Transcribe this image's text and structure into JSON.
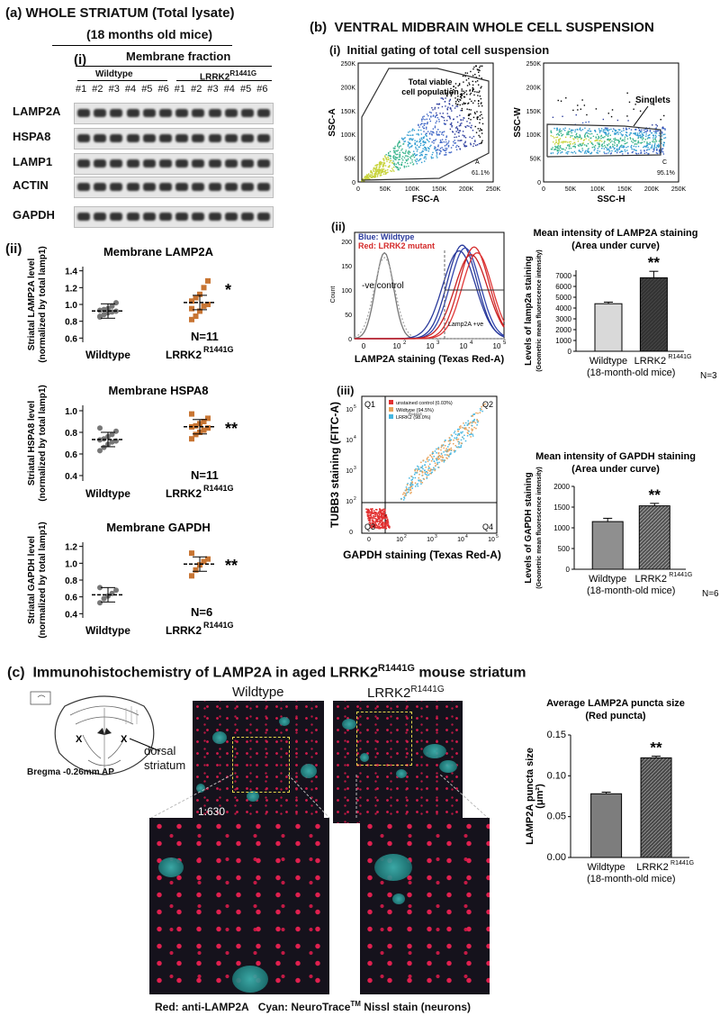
{
  "panel_a": {
    "label": "(a)",
    "title": "WHOLE STRIATUM (Total lysate)",
    "subtitle": "(18 months old mice)",
    "sub_i": "(i)",
    "fraction": "Membrane fraction",
    "wildtype": "Wildtype",
    "lrrk2": "LRRK2",
    "mutation": "R1441G",
    "lanes": [
      "#1",
      "#2",
      "#3",
      "#4",
      "#5",
      "#6",
      "#1",
      "#2",
      "#3",
      "#4",
      "#5",
      "#6"
    ],
    "blots": [
      "LAMP2A",
      "HSPA8",
      "LAMP1",
      "ACTIN",
      "GAPDH"
    ],
    "sub_ii": "(ii)"
  },
  "dot_plots": [
    {
      "title": "Membrane LAMP2A",
      "ylabel1": "Striatal LAMP2A level",
      "ylabel2": "(normalized by total lamp1)",
      "yticks": [
        "1.4",
        "1.2",
        "1.0",
        "0.8",
        "0.6"
      ],
      "sig": "*",
      "n": "N=11",
      "xlabels": [
        "Wildtype",
        "LRRK2"
      ],
      "mutation": "R1441G",
      "wt_values": [
        0.86,
        0.88,
        0.9,
        0.91,
        0.92,
        0.93,
        0.94,
        0.95,
        0.98,
        1.02,
        0.85
      ],
      "mut_values": [
        0.82,
        0.86,
        0.92,
        0.98,
        1.0,
        1.04,
        1.08,
        1.12,
        1.2,
        1.28,
        0.95
      ]
    },
    {
      "title": "Membrane HSPA8",
      "ylabel1": "Striatal HSPA8 level",
      "ylabel2": "(normalized by total lamp1)",
      "yticks": [
        "1.0",
        "0.8",
        "0.6",
        "0.4"
      ],
      "sig": "**",
      "n": "N=11",
      "xlabels": [
        "Wildtype",
        "LRRK2"
      ],
      "mutation": "R1441G",
      "wt_values": [
        0.63,
        0.66,
        0.69,
        0.71,
        0.72,
        0.73,
        0.74,
        0.76,
        0.78,
        0.81,
        0.84
      ],
      "mut_values": [
        0.74,
        0.78,
        0.8,
        0.82,
        0.84,
        0.85,
        0.86,
        0.88,
        0.9,
        0.93,
        0.97
      ]
    },
    {
      "title": "Membrane GAPDH",
      "ylabel1": "Striatal GAPDH level",
      "ylabel2": "(normalized by total lamp1)",
      "yticks": [
        "1.2",
        "1.0",
        "0.8",
        "0.6",
        "0.4"
      ],
      "sig": "**",
      "n": "N=6",
      "xlabels": [
        "Wildtype",
        "LRRK2"
      ],
      "mutation": "R1441G",
      "wt_values": [
        0.53,
        0.58,
        0.61,
        0.64,
        0.68,
        0.71
      ],
      "mut_values": [
        0.85,
        0.92,
        0.98,
        1.02,
        1.05,
        1.12
      ]
    }
  ],
  "panel_b": {
    "label": "(b)",
    "title": "VENTRAL MIDBRAIN WHOLE CELL SUSPENSION",
    "sub_i": "(i)",
    "sub_i_title": "Initial gating of total cell suspension",
    "flow1": {
      "ylabel": "SSC-A",
      "xlabel": "FSC-A",
      "yticks": [
        "250K",
        "200K",
        "150K",
        "100K",
        "50K",
        "0"
      ],
      "xticks": [
        "0",
        "50K",
        "100K",
        "150K",
        "200K",
        "250K"
      ],
      "gate": "Total viable cell population",
      "gate_id": "A",
      "gate_pct": "61.1%"
    },
    "flow2": {
      "ylabel": "SSC-W",
      "xlabel": "SSC-H",
      "yticks": [
        "250K",
        "200K",
        "150K",
        "100K",
        "50K",
        "0"
      ],
      "xticks": [
        "0",
        "50K",
        "100K",
        "150K",
        "200K",
        "250K"
      ],
      "gate": "Singlets",
      "gate_id": "C",
      "gate_pct": "95.1%"
    },
    "sub_ii": "(ii)",
    "histo": {
      "legend_blue": "Blue: Wildtype",
      "legend_red": "Red: LRRK2 mutant",
      "ylabel": "Count",
      "yticks": [
        "200",
        "150",
        "100",
        "50",
        "0"
      ],
      "xticks": [
        "0",
        "10",
        "10",
        "10",
        "10"
      ],
      "xexp": [
        "",
        "2",
        "3",
        "4",
        "5"
      ],
      "neg_control": "-ve control",
      "pos_gate": "Lamp2A +ve",
      "xlabel": "LAMP2A staining (Texas Red-A)"
    },
    "sub_iii": "(iii)",
    "scatter": {
      "ylabel": "TUBB3 staining (FITC-A)",
      "xlabel": "GAPDH staining (Texas Red-A)",
      "quads": [
        "Q1",
        "Q2",
        "Q3",
        "Q4"
      ],
      "legend": [
        "unstained control (0.03%)",
        "Wildtype (94.5%)",
        "LRRK2 (98.0%)"
      ],
      "legend_mut": "R1441G",
      "yticks": [
        "10",
        "10",
        "10",
        "10",
        "0"
      ],
      "yexp": [
        "5",
        "4",
        "3",
        "2",
        ""
      ],
      "xticks": [
        "0",
        "10",
        "10",
        "10",
        "10"
      ],
      "xexp": [
        "",
        "2",
        "3",
        "4",
        "5"
      ]
    }
  },
  "chart_data": [
    {
      "type": "bar",
      "title": "Mean intensity of LAMP2A staining (Area under curve)",
      "categories": [
        "Wildtype",
        "LRRK2 R1441G"
      ],
      "values": [
        4400,
        6800
      ],
      "errors": [
        150,
        600
      ],
      "ylabel": "Levels of lamp2a staining (Geometric mean fluorescence intensity)",
      "yticks": [
        "7000",
        "6000",
        "5000",
        "4000",
        "3000",
        "2000",
        "1000",
        "0"
      ],
      "ylim": [
        0,
        7500
      ],
      "sig": "**",
      "xnote": "(18-month-old mice)",
      "n": "N=3"
    },
    {
      "type": "bar",
      "title": "Mean intensity of GAPDH staining (Area under curve)",
      "categories": [
        "Wildtype",
        "LRRK2 R1441G"
      ],
      "values": [
        1150,
        1530
      ],
      "errors": [
        80,
        60
      ],
      "ylabel": "Levels of GAPDH staining (Geometric mean fluorescence intensity)",
      "yticks": [
        "2000",
        "1500",
        "1000",
        "500",
        "0"
      ],
      "ylim": [
        0,
        2000
      ],
      "sig": "**",
      "xnote": "(18-month-old mice)",
      "n": "N=6"
    },
    {
      "type": "bar",
      "title": "Average LAMP2A puncta size (Red puncta)",
      "categories": [
        "Wildtype",
        "LRRK2 R1441G"
      ],
      "values": [
        0.078,
        0.122
      ],
      "errors": [
        0.002,
        0.002
      ],
      "ylabel": "LAMP2A puncta size (μm²)",
      "yticks": [
        "0.15",
        "0.10",
        "0.05",
        "0.00"
      ],
      "ylim": [
        0,
        0.15
      ],
      "sig": "**",
      "xnote": "(18-month-old mice)",
      "n": ""
    }
  ],
  "panel_c": {
    "label": "(c)",
    "title": "Immunohistochemistry of LAMP2A in aged LRRK2",
    "title_mut": "R1441G",
    "title_end": "mouse striatum",
    "dorsal": "dorsal",
    "striatum": "striatum",
    "bregma": "Bregma -0.26mm AP",
    "x_mark": "X",
    "img_wt": "Wildtype",
    "img_mut": "LRRK2",
    "img_mut_sup": "R1441G",
    "scale": "1:630",
    "caption_red": "Red: anti-LAMP2A",
    "caption_cyan": "Cyan: NeuroTrace",
    "caption_tm": "TM",
    "caption_end": "Nissl stain (neurons)"
  }
}
